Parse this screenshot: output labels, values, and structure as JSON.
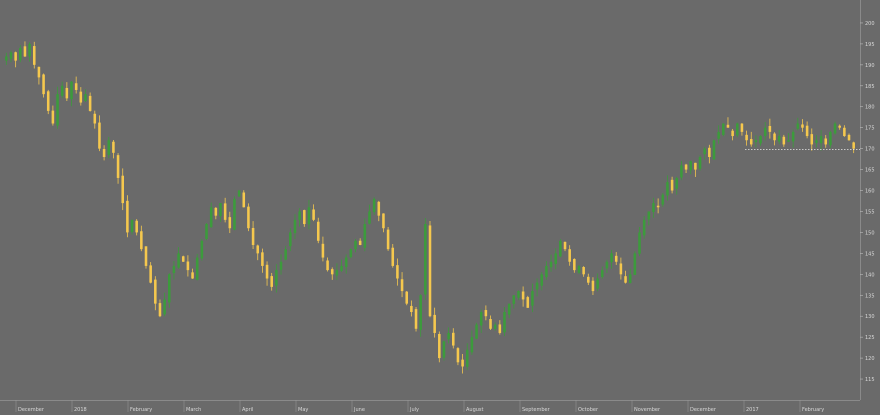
{
  "chart_data": {
    "type": "candlestick",
    "title": "",
    "xlabel": "",
    "ylabel": "",
    "ylim": [
      110,
      205
    ],
    "yticks": [
      115,
      120,
      125,
      130,
      135,
      140,
      145,
      150,
      155,
      160,
      165,
      170,
      175,
      180,
      185,
      190,
      195,
      200,
      205
    ],
    "last_close": 169.8,
    "colors": {
      "background": "#6a6a6a",
      "up": "#3c9b3c",
      "down": "#f5c84e",
      "price_line": "#ffffff",
      "axis_text": "#d8d8d8"
    },
    "months": [
      "December",
      "2018",
      "February",
      "March",
      "April",
      "May",
      "June",
      "July",
      "August",
      "September",
      "October",
      "November",
      "December",
      "2017",
      "February"
    ],
    "closes": [
      192,
      193,
      191,
      194,
      192,
      195,
      190,
      187,
      183,
      179,
      176,
      183,
      185,
      182,
      186,
      184,
      181,
      183,
      179,
      176,
      170,
      168,
      172,
      169,
      163,
      157,
      150,
      153,
      150,
      146,
      142,
      138,
      133,
      130,
      134,
      140,
      142,
      145,
      143,
      141,
      139,
      144,
      148,
      152,
      156,
      154,
      157,
      153,
      151,
      158,
      160,
      156,
      151,
      147,
      145,
      142,
      139,
      137,
      141,
      143,
      146,
      150,
      153,
      155,
      152,
      156,
      153,
      148,
      144,
      141,
      140,
      141,
      142,
      144,
      146,
      148,
      147,
      152,
      155,
      158,
      154,
      151,
      146,
      142,
      139,
      136,
      133,
      131,
      127,
      135,
      152,
      130,
      126,
      120,
      124,
      126,
      123,
      119,
      118,
      122,
      125,
      128,
      131,
      130,
      127,
      128,
      126,
      131,
      133,
      135,
      136,
      134,
      132,
      136,
      138,
      140,
      142,
      143,
      145,
      148,
      146,
      143,
      141,
      142,
      140,
      138,
      136,
      139,
      141,
      143,
      145,
      143,
      140,
      138,
      140,
      145,
      150,
      153,
      155,
      157,
      156,
      159,
      162,
      160,
      163,
      166,
      165,
      167,
      165,
      168,
      170,
      168,
      172,
      174,
      176,
      175,
      173,
      176,
      174,
      172,
      171,
      172,
      173,
      175,
      174,
      172,
      173,
      171,
      172,
      174,
      176,
      175,
      173,
      171,
      172,
      173,
      171,
      174,
      176,
      175,
      173,
      172,
      170
    ]
  }
}
